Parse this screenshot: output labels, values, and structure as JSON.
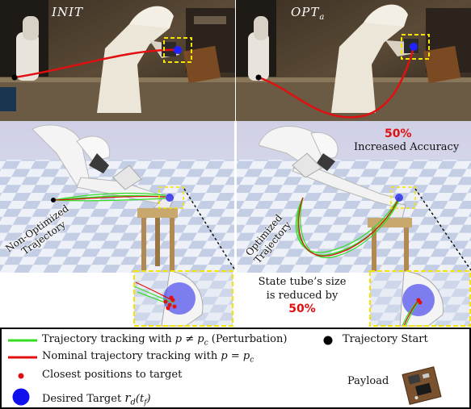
{
  "top_panels": {
    "left_label": "INIT",
    "right_label": "OPT",
    "right_label_sub": "a"
  },
  "annotations": {
    "accuracy_percent": "50%",
    "accuracy_text": "Increased Accuracy",
    "left_traj_label_line1": "Non-Optimized",
    "left_traj_label_line2": "Trajectory",
    "right_traj_label_line1": "Optimized",
    "right_traj_label_line2": "Trajectory",
    "tube_line1": "State tube’s size",
    "tube_line2": "is reduced by",
    "tube_percent": "50%"
  },
  "legend": {
    "green_text": "Trajectory tracking with",
    "green_math": "p ≠ p",
    "green_math_sub": "c",
    "green_suffix": "(Perturbation)",
    "red_text": "Nominal trajectory tracking with",
    "red_math": "p = p",
    "red_math_sub": "c",
    "dot_text": "Closest positions to target",
    "target_text": "Desired Target",
    "target_math": "r",
    "target_math_sub": "d",
    "target_math_arg": "(t",
    "target_math_arg_sub": "f",
    "target_math_close": ")",
    "start_text": "Trajectory Start",
    "payload_text": "Payload"
  },
  "colors": {
    "green": "#33dd22",
    "red": "#e01010",
    "blue": "#1010ee",
    "yellow": "#f5e400"
  }
}
